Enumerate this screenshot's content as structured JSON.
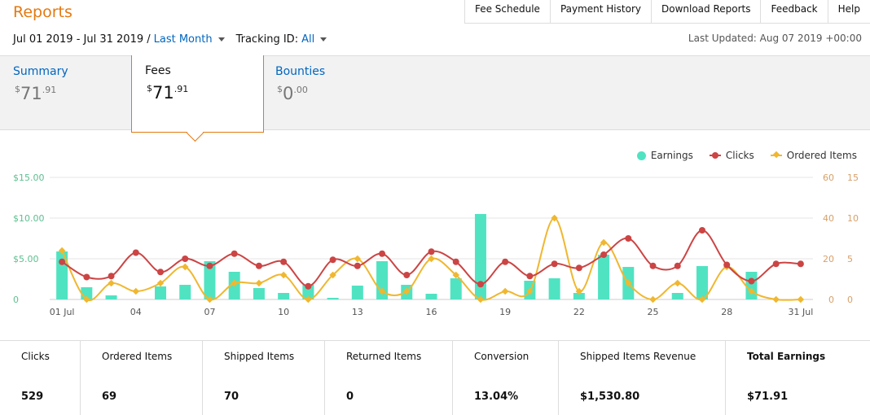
{
  "header": {
    "title": "Reports",
    "nav": [
      "Fee Schedule",
      "Payment History",
      "Download Reports",
      "Feedback",
      "Help"
    ],
    "date_range": "Jul 01 2019 - Jul 31 2019 /",
    "period": "Last Month",
    "tracking_label": "Tracking ID:",
    "tracking_value": "All",
    "last_updated": "Last Updated: Aug 07 2019 +00:00"
  },
  "tabs": [
    {
      "label": "Summary",
      "currency": "$",
      "main": "71",
      "cents": ".91",
      "active": false
    },
    {
      "label": "Fees",
      "currency": "$",
      "main": "71",
      "cents": ".91",
      "active": true
    },
    {
      "label": "Bounties",
      "currency": "$",
      "main": "0",
      "cents": ".00",
      "active": false
    }
  ],
  "legend": {
    "earnings": "Earnings",
    "clicks": "Clicks",
    "ordered": "Ordered Items"
  },
  "colors": {
    "accent": "#e47911",
    "link": "#0066c0",
    "earnings": "#50e3c2",
    "clicks": "#cc4444",
    "ordered": "#f0b72f"
  },
  "chart_data": {
    "type": "bar",
    "x_labels": [
      "01 Jul",
      "04",
      "07",
      "10",
      "13",
      "16",
      "19",
      "22",
      "25",
      "28",
      "31 Jul"
    ],
    "x_label_days": [
      1,
      4,
      7,
      10,
      13,
      16,
      19,
      22,
      25,
      28,
      31
    ],
    "y_left_ticks": [
      "0",
      "$5.00",
      "$10.00",
      "$15.00"
    ],
    "y_mid_ticks": [
      "0",
      "20",
      "40",
      "60"
    ],
    "y_right_ticks": [
      "0",
      "5",
      "10",
      "15"
    ],
    "ylim_left": [
      0,
      15
    ],
    "ylim_mid": [
      0,
      60
    ],
    "ylim_right": [
      0,
      15
    ],
    "grid": true,
    "legend_position": "top-right",
    "days": [
      1,
      2,
      3,
      4,
      5,
      6,
      7,
      8,
      9,
      10,
      11,
      12,
      13,
      14,
      15,
      16,
      17,
      18,
      19,
      20,
      21,
      22,
      23,
      24,
      25,
      26,
      27,
      28,
      29,
      30,
      31
    ],
    "series": [
      {
        "name": "Earnings",
        "type": "bar",
        "axis": "left",
        "values": [
          5.9,
          1.5,
          0.5,
          0,
          1.6,
          1.8,
          4.7,
          3.4,
          1.4,
          0.8,
          1.8,
          0.2,
          1.7,
          4.7,
          1.8,
          0.7,
          2.6,
          10.5,
          0,
          2.3,
          2.6,
          0.8,
          5.5,
          4.0,
          0,
          0.8,
          4.1,
          0,
          3.4,
          0,
          0
        ]
      },
      {
        "name": "Clicks",
        "type": "line",
        "axis": "mid",
        "values": [
          18.5,
          11,
          11.5,
          23,
          13.5,
          20,
          16.5,
          22.5,
          16.5,
          18.5,
          6.5,
          19.5,
          16.5,
          22.5,
          12,
          23.5,
          18.5,
          7.5,
          18.5,
          11.5,
          17.5,
          15.5,
          22,
          30,
          16.5,
          16.5,
          34,
          17,
          9,
          17.5,
          17.5
        ]
      },
      {
        "name": "Ordered Items",
        "type": "line",
        "axis": "right",
        "values": [
          6,
          0,
          2,
          1,
          2,
          4,
          0,
          2,
          2,
          3,
          0,
          3,
          5,
          1,
          1,
          5,
          3,
          0,
          1,
          1,
          10,
          1,
          7,
          2,
          0,
          2,
          0,
          4,
          1,
          0,
          0
        ]
      }
    ]
  },
  "stats": [
    {
      "label": "Clicks",
      "value": "529"
    },
    {
      "label": "Ordered Items",
      "value": "69"
    },
    {
      "label": "Shipped Items",
      "value": "70"
    },
    {
      "label": "Returned Items",
      "value": "0"
    },
    {
      "label": "Conversion",
      "value": "13.04%"
    },
    {
      "label": "Shipped Items Revenue",
      "value": "$1,530.80"
    },
    {
      "label": "Total Earnings",
      "value": "$71.91",
      "highlight": true
    }
  ]
}
